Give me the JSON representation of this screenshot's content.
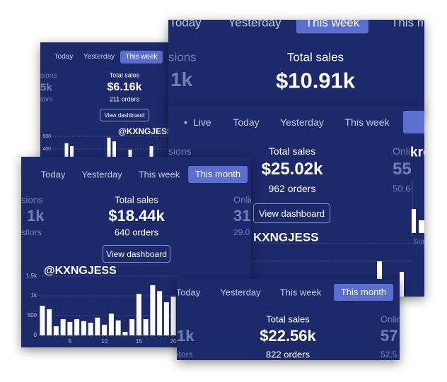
{
  "panels": [
    {
      "tabs": [
        {
          "label": "Today"
        },
        {
          "label": "Yesterday"
        },
        {
          "label": "This week",
          "selected": true
        }
      ],
      "left_stats": [
        "sions",
        "5k",
        "itors"
      ],
      "total_label": "Total sales",
      "total": "$6.16k",
      "orders": "211 orders",
      "button": "View dashboard",
      "watermark": "@KXNGJESS",
      "chart": {
        "x": [
          1,
          2,
          3,
          4,
          5,
          6,
          7,
          8,
          9,
          10,
          11,
          12,
          13,
          14,
          15,
          16,
          17,
          18,
          19,
          20
        ],
        "values": [
          220,
          220,
          220,
          490,
          445,
          220,
          220,
          220,
          220,
          220,
          220,
          580,
          520,
          220,
          220,
          390,
          220,
          220,
          220,
          445
        ],
        "xlim": [
          0.5,
          20.5
        ],
        "ylim": [
          0,
          600
        ],
        "yticks": [
          600,
          400
        ]
      }
    },
    {
      "tabs": [
        {
          "label": "Today"
        },
        {
          "label": "Yesterday"
        },
        {
          "label": "This week",
          "selected": true
        },
        {
          "label": "This month"
        }
      ],
      "left_stats": [
        "sions",
        "1k"
      ],
      "total_label": "Total sales",
      "total": "$10.91k"
    },
    {
      "tabs": [
        {
          "label": "Live"
        },
        {
          "label": "Today"
        },
        {
          "label": "Yesterday"
        },
        {
          "label": "This week"
        }
      ],
      "left_stats": [
        "sions"
      ],
      "right_stats": [
        "Onli",
        "55",
        "50.6"
      ],
      "total_label": "Total sales",
      "total": "$25.02k",
      "orders": "962 orders",
      "button": "View dashboard",
      "watermark": "KXNGJESS",
      "watermark_fragment": "kro",
      "day_label": "Sur"
    },
    {
      "tabs": [
        {
          "label": "Today"
        },
        {
          "label": "Yesterday"
        },
        {
          "label": "This week"
        },
        {
          "label": "This month",
          "selected": true
        }
      ],
      "left_stats": [
        "sions",
        "1k",
        "sitors"
      ],
      "right_stats": [
        "Onlin",
        "31",
        "29.0"
      ],
      "total_label": "Total sales",
      "total": "$18.44k",
      "orders": "640 orders",
      "button": "View dashboard",
      "watermark": "@KXNGJESS",
      "chart": {
        "x": [
          1,
          2,
          3,
          4,
          5,
          6,
          7,
          8,
          9,
          10,
          11,
          12,
          13,
          14,
          15,
          16,
          17,
          18,
          19,
          20
        ],
        "values": [
          750,
          660,
          230,
          410,
          340,
          410,
          360,
          320,
          450,
          270,
          550,
          380,
          90,
          410,
          1050,
          410,
          1270,
          1120,
          840,
          980
        ],
        "xlim": [
          0.5,
          20.5
        ],
        "ylim": [
          0,
          1500
        ],
        "yticks": [
          0,
          500,
          {
            "value": 1000,
            "label": "1k"
          },
          {
            "value": 1500,
            "label": "1.5k"
          }
        ],
        "xticks": [
          5,
          10,
          15,
          20
        ]
      }
    },
    {
      "tabs": [
        {
          "label": "Today"
        },
        {
          "label": "Yesterday"
        },
        {
          "label": "This week"
        },
        {
          "label": "This month",
          "selected": true
        }
      ],
      "left_stats": [
        "1k",
        "itors"
      ],
      "right_stats": [
        "Onlin",
        "57",
        "52.5"
      ],
      "total_label": "Total sales",
      "total": "$22.56k",
      "orders": "822 orders"
    }
  ]
}
